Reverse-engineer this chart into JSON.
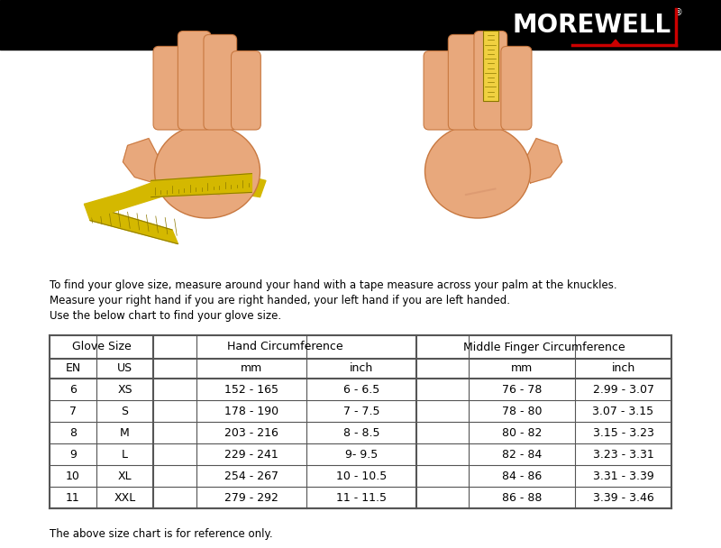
{
  "header_bg": "#000000",
  "header_text": "MOREWELL",
  "header_reg": "®",
  "logo_red_color": "#cc0000",
  "description_lines": [
    "To find your glove size, measure around your hand with a tape measure across your palm at the knuckles.",
    "Measure your right hand if you are right handed, your left hand if you are left handed.",
    "Use the below chart to find your glove size."
  ],
  "footer_text": "The above size chart is for reference only.",
  "table_data": [
    [
      "6",
      "XS",
      "152 - 165",
      "6 - 6.5",
      "76 - 78",
      "2.99 - 3.07"
    ],
    [
      "7",
      "S",
      "178 - 190",
      "7 - 7.5",
      "78 - 80",
      "3.07 - 3.15"
    ],
    [
      "8",
      "M",
      "203 - 216",
      "8 - 8.5",
      "80 - 82",
      "3.15 - 3.23"
    ],
    [
      "9",
      "L",
      "229 - 241",
      "9- 9.5",
      "82 - 84",
      "3.23 - 3.31"
    ],
    [
      "10",
      "XL",
      "254 - 267",
      "10 - 10.5",
      "84 - 86",
      "3.31 - 3.39"
    ],
    [
      "11",
      "XXL",
      "279 - 292",
      "11 - 11.5",
      "86 - 88",
      "3.39 - 3.46"
    ]
  ],
  "skin_color": "#E8A87C",
  "skin_dark": "#C87840",
  "skin_shadow": "#D4906A",
  "tape_color": "#D4B800",
  "tape_dark": "#8B7800",
  "tape_light": "#F0D040",
  "bg_color": "#ffffff",
  "text_color": "#000000",
  "border_color": "#555555"
}
